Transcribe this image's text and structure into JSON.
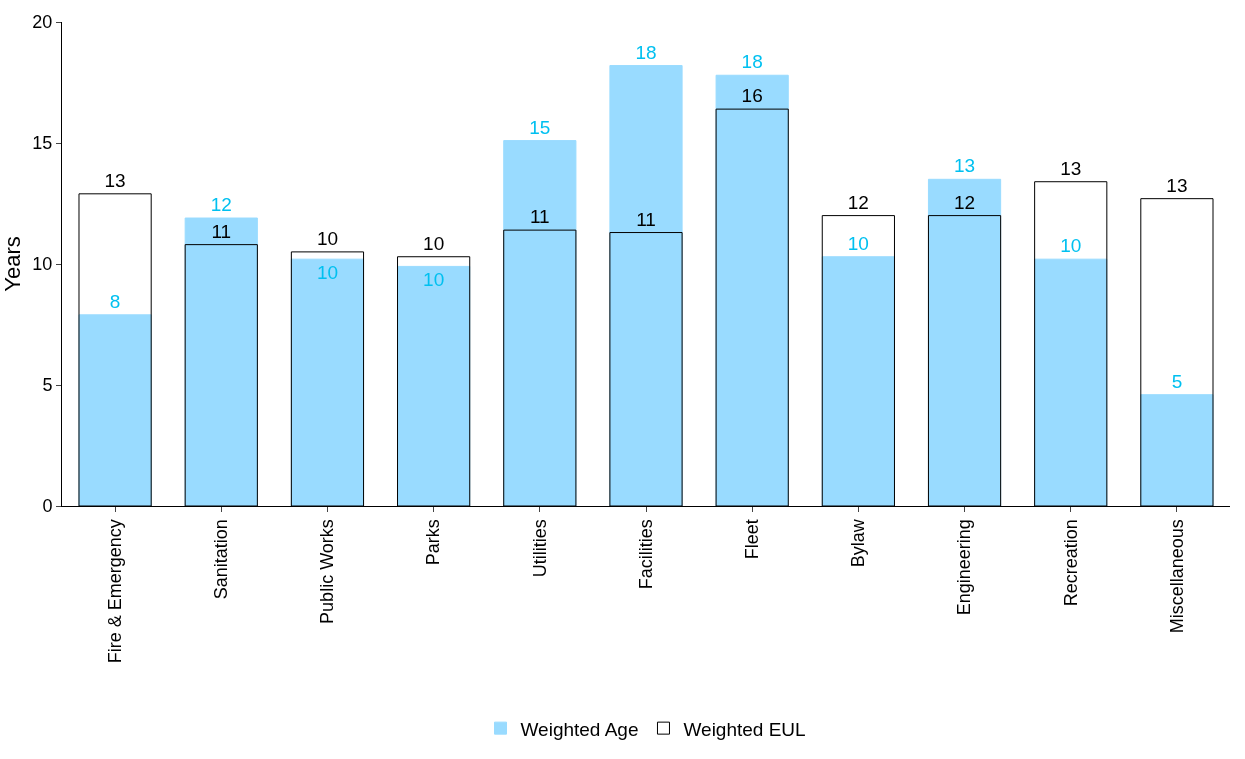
{
  "chart_data": {
    "type": "bar",
    "ylabel": "Years",
    "categories": [
      "Fire & Emergency",
      "Sanitation",
      "Public Works",
      "Parks",
      "Utilities",
      "Facilities",
      "Fleet",
      "Bylaw",
      "Engineering",
      "Recreation",
      "Miscellaneous"
    ],
    "series": [
      {
        "name": "Weighted Age",
        "color": "#99dbff",
        "values": [
          7.9,
          11.9,
          10.2,
          9.9,
          15.1,
          18.2,
          17.8,
          10.3,
          13.5,
          10.2,
          4.6
        ],
        "value_labels": [
          "8",
          "12",
          "10",
          "10",
          "15",
          "18",
          "18",
          "10",
          "13",
          "10",
          "5"
        ]
      },
      {
        "name": "Weighted EUL",
        "color": "#000000",
        "values": [
          12.9,
          10.8,
          10.5,
          10.3,
          11.4,
          11.3,
          16.4,
          12.0,
          12.0,
          13.4,
          12.7
        ],
        "value_labels": [
          "13",
          "11",
          "10",
          "10",
          "11",
          "11",
          "16",
          "12",
          "12",
          "13",
          "13"
        ]
      }
    ],
    "ylim": [
      0,
      20
    ],
    "yticks": [
      0,
      5,
      10,
      15,
      20
    ],
    "legend": "bottom"
  }
}
